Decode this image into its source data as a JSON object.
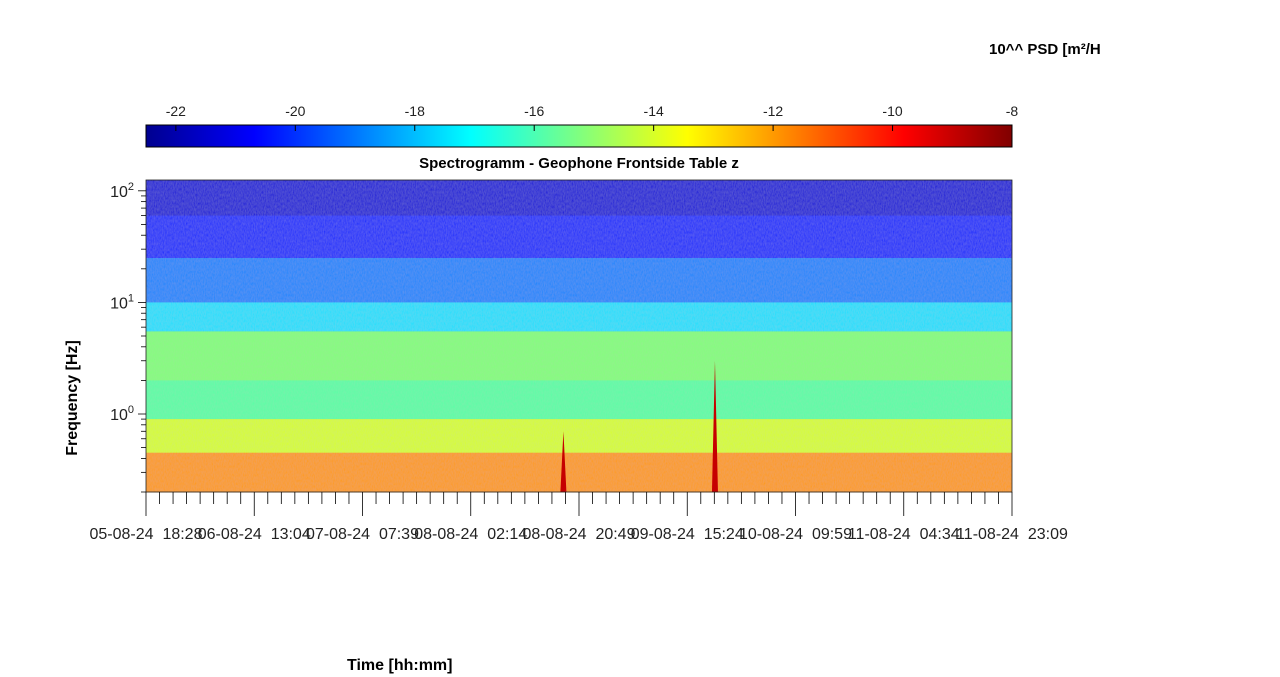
{
  "chart_data": {
    "type": "heatmap",
    "title": "Spectrogramm - Geophone Frontside Table z",
    "xlabel": "Time [hh:mm]",
    "ylabel": "Frequency [Hz]",
    "colorbar": {
      "label": "10^^ PSD [m²/H",
      "colormap": "jet",
      "range": [
        -22.5,
        -8
      ],
      "ticks": [
        "-22",
        "-20",
        "-18",
        "-16",
        "-14",
        "-12",
        "-10",
        "-8"
      ],
      "tick_values": [
        -22,
        -20,
        -18,
        -16,
        -14,
        -12,
        -10,
        -8
      ],
      "position": "top"
    },
    "x_ticks": [
      "05-08-24  18:28",
      "06-08-24  13:04",
      "07-08-24  07:39",
      "08-08-24  02:14",
      "08-08-24  20:49",
      "09-08-24  15:24",
      "10-08-24  09:59",
      "11-08-24  04:34",
      "11-08-24  23:09"
    ],
    "y_scale": "log",
    "ylim_hz": [
      0.2,
      125
    ],
    "y_ticks": [
      {
        "base": "10",
        "exp": "0",
        "value": 1
      },
      {
        "base": "10",
        "exp": "1",
        "value": 10
      },
      {
        "base": "10",
        "exp": "2",
        "value": 100
      }
    ],
    "bands": [
      {
        "from_hz": 125,
        "to_hz": 60,
        "level_db": -21.3
      },
      {
        "from_hz": 60,
        "to_hz": 25,
        "level_db": -20.2
      },
      {
        "from_hz": 25,
        "to_hz": 10,
        "level_db": -18.8
      },
      {
        "from_hz": 10,
        "to_hz": 5.5,
        "level_db": -17.5
      },
      {
        "from_hz": 5.5,
        "to_hz": 2.0,
        "level_db": -15.2
      },
      {
        "from_hz": 2.0,
        "to_hz": 0.9,
        "level_db": -15.8
      },
      {
        "from_hz": 0.9,
        "to_hz": 0.45,
        "level_db": -14.0
      },
      {
        "from_hz": 0.45,
        "to_hz": 0.2,
        "level_db": -12.0
      }
    ],
    "events": [
      {
        "time_fraction": 0.482,
        "top_hz": 0.7,
        "level_db": -9
      },
      {
        "time_fraction": 0.657,
        "top_hz": 3.0,
        "level_db": -9
      }
    ]
  }
}
